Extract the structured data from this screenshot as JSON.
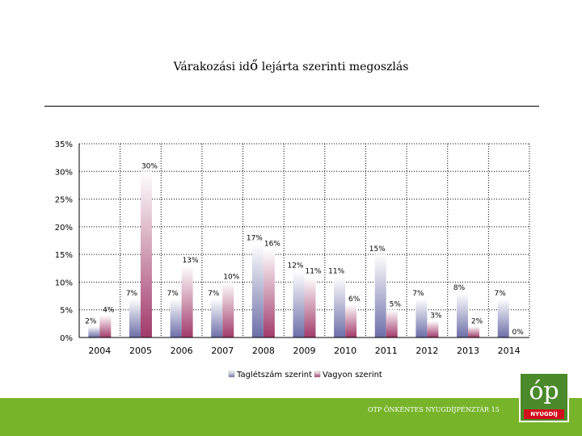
{
  "slide": {
    "title_pre": "Várakozási id",
    "title_big": "ő",
    "title_post": " lejárta szerinti megoszlás",
    "footer": "OTP ÖNKÉNTES NYUGDÍJPÉNZTÁR 15"
  },
  "logo": {
    "glyph": "óp",
    "label": "NYUGDÍJ"
  },
  "colors": {
    "series1": "#6c6ea8",
    "series2": "#a13a6a",
    "footer_green": "#77b42a"
  },
  "chart_data": {
    "type": "bar",
    "categories": [
      "2004",
      "2005",
      "2006",
      "2007",
      "2008",
      "2009",
      "2010",
      "2011",
      "2012",
      "2013",
      "2014"
    ],
    "series": [
      {
        "name": "Taglétszám szerint",
        "values": [
          2,
          7,
          7,
          7,
          17,
          12,
          11,
          15,
          7,
          8,
          7
        ],
        "labels": [
          "2%",
          "7%",
          "7%",
          "7%",
          "17%",
          "12%",
          "11%",
          "15%",
          "7%",
          "8%",
          "7%"
        ]
      },
      {
        "name": "Vagyon szerint",
        "values": [
          4,
          30,
          13,
          10,
          16,
          11,
          6,
          5,
          3,
          2,
          0
        ],
        "labels": [
          "4%",
          "30%",
          "13%",
          "10%",
          "16%",
          "11%",
          "6%",
          "5%",
          "3%",
          "2%",
          "0%"
        ]
      }
    ],
    "yticks": [
      "0%",
      "5%",
      "10%",
      "15%",
      "20%",
      "25%",
      "30%",
      "35%"
    ],
    "ylim": [
      0,
      35
    ],
    "grid": true,
    "legend": "bottom"
  }
}
